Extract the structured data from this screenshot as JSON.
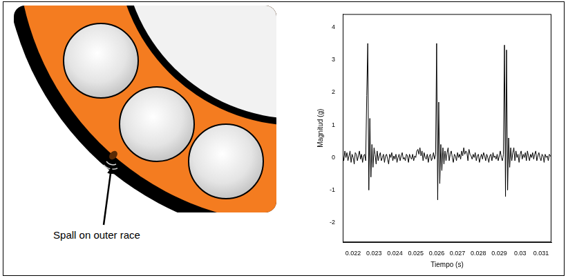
{
  "diagram": {
    "label": "Spall on outer race"
  },
  "chart_data": {
    "type": "line",
    "x_label": "Tiempo (s)",
    "y_label": "Magnitud (g)",
    "color": "#000000",
    "grid": false,
    "xlim": [
      0.0215,
      0.0315
    ],
    "xticks": [
      0.022,
      0.023,
      0.024,
      0.025,
      0.026,
      0.027,
      0.028,
      0.029,
      0.03,
      0.031
    ],
    "ylim": [
      -2.6,
      4.4
    ],
    "yticks": [
      -2,
      -1,
      0,
      1,
      2,
      3,
      4
    ],
    "x": [
      0.0215,
      0.02155,
      0.0216,
      0.02165,
      0.0217,
      0.02175,
      0.0218,
      0.02185,
      0.0219,
      0.02195,
      0.022,
      0.02205,
      0.0221,
      0.02215,
      0.0222,
      0.02225,
      0.0223,
      0.02235,
      0.0224,
      0.02245,
      0.0225,
      0.02255,
      0.0226,
      0.02265,
      0.0227,
      0.02275,
      0.0228,
      0.02285,
      0.0229,
      0.02295,
      0.023,
      0.02305,
      0.0231,
      0.02315,
      0.0232,
      0.02325,
      0.0233,
      0.02335,
      0.0234,
      0.02345,
      0.0235,
      0.02355,
      0.0236,
      0.02365,
      0.0237,
      0.02375,
      0.0238,
      0.02385,
      0.0239,
      0.02395,
      0.024,
      0.02405,
      0.0241,
      0.02415,
      0.0242,
      0.02425,
      0.0243,
      0.02435,
      0.0244,
      0.02445,
      0.0245,
      0.02455,
      0.0246,
      0.02465,
      0.0247,
      0.02475,
      0.0248,
      0.02485,
      0.0249,
      0.02495,
      0.025,
      0.02505,
      0.0251,
      0.02515,
      0.0252,
      0.02525,
      0.0253,
      0.02535,
      0.0254,
      0.02545,
      0.0255,
      0.02555,
      0.0256,
      0.02565,
      0.0257,
      0.02575,
      0.0258,
      0.02585,
      0.0259,
      0.02595,
      0.026,
      0.02605,
      0.0261,
      0.02615,
      0.0262,
      0.02625,
      0.0263,
      0.02635,
      0.0264,
      0.02645,
      0.0265,
      0.02655,
      0.0266,
      0.02665,
      0.0267,
      0.02675,
      0.0268,
      0.02685,
      0.0269,
      0.02695,
      0.027,
      0.02705,
      0.0271,
      0.02715,
      0.0272,
      0.02725,
      0.0273,
      0.02735,
      0.0274,
      0.02745,
      0.0275,
      0.02755,
      0.0276,
      0.02765,
      0.0277,
      0.02775,
      0.0278,
      0.02785,
      0.0279,
      0.02795,
      0.028,
      0.02805,
      0.0281,
      0.02815,
      0.0282,
      0.02825,
      0.0283,
      0.02835,
      0.0284,
      0.02845,
      0.0285,
      0.02855,
      0.0286,
      0.02865,
      0.0287,
      0.02875,
      0.0288,
      0.02885,
      0.0289,
      0.02895,
      0.029,
      0.02905,
      0.0291,
      0.02915,
      0.0292,
      0.02925,
      0.0293,
      0.02935,
      0.0294,
      0.02945,
      0.0295,
      0.02955,
      0.0296,
      0.02965,
      0.0297,
      0.02975,
      0.0298,
      0.02985,
      0.0299,
      0.02995,
      0.03,
      0.03005,
      0.0301,
      0.03015,
      0.0302,
      0.03025,
      0.0303,
      0.03035,
      0.0304,
      0.03045,
      0.0305,
      0.03055,
      0.0306,
      0.03065,
      0.0307,
      0.03075,
      0.0308,
      0.03085,
      0.0309,
      0.03095,
      0.031,
      0.03105,
      0.0311,
      0.03115,
      0.0312,
      0.03125,
      0.0313,
      0.03135,
      0.0314,
      0.03145,
      0.0315
    ],
    "values": [
      0.1,
      -0.1,
      0.2,
      0.0,
      0.15,
      -0.1,
      0.05,
      0.2,
      -0.15,
      0.1,
      0.0,
      -0.2,
      0.15,
      0.1,
      -0.1,
      0.05,
      0.2,
      -0.05,
      0.1,
      -0.15,
      0.05,
      0.1,
      -0.1,
      1.9,
      3.5,
      -1.0,
      1.2,
      -0.6,
      0.4,
      -0.3,
      0.3,
      0.1,
      -0.2,
      0.2,
      -0.1,
      0.05,
      0.15,
      -0.1,
      0.0,
      0.1,
      -0.15,
      0.05,
      0.1,
      -0.05,
      -0.2,
      0.1,
      0.0,
      0.15,
      -0.1,
      0.05,
      -0.05,
      0.1,
      -0.15,
      0.0,
      0.1,
      -0.1,
      0.05,
      0.15,
      -0.05,
      0.0,
      -0.1,
      0.1,
      0.05,
      -0.15,
      0.1,
      0.0,
      -0.05,
      0.1,
      -0.1,
      0.05,
      0.0,
      0.2,
      0.25,
      0.1,
      0.3,
      0.05,
      0.2,
      -0.1,
      0.15,
      0.0,
      -0.05,
      0.1,
      -0.15,
      0.05,
      0.1,
      -0.1,
      0.0,
      0.15,
      -0.05,
      0.1,
      3.5,
      -1.3,
      1.7,
      -0.8,
      0.4,
      -0.4,
      0.3,
      -0.2,
      0.2,
      -0.1,
      0.15,
      0.3,
      -0.1,
      0.1,
      0.2,
      0.0,
      -0.15,
      0.1,
      0.05,
      -0.1,
      0.15,
      0.0,
      0.1,
      -0.05,
      0.2,
      0.05,
      0.3,
      0.1,
      0.2,
      0.15,
      -0.1,
      0.25,
      0.1,
      0.05,
      -0.05,
      0.1,
      0.0,
      0.15,
      -0.1,
      0.05,
      0.1,
      -0.15,
      0.0,
      0.1,
      -0.05,
      0.15,
      0.05,
      -0.1,
      0.1,
      0.0,
      -0.15,
      0.05,
      0.1,
      -0.1,
      0.15,
      0.0,
      0.05,
      -0.05,
      0.1,
      -0.1,
      0.05,
      0.2,
      0.0,
      -0.1,
      0.1,
      3.45,
      -1.2,
      3.3,
      -1.0,
      0.6,
      -0.3,
      0.3,
      -0.1,
      0.15,
      0.3,
      -0.1,
      0.2,
      0.0,
      0.1,
      -0.15,
      0.1,
      0.2,
      -0.05,
      0.1,
      0.0,
      0.15,
      -0.1,
      0.2,
      0.05,
      -0.1,
      0.1,
      0.0,
      0.15,
      -0.05,
      0.1,
      0.2,
      -0.1,
      0.05,
      0.15,
      0.0,
      -0.1,
      0.1,
      0.05,
      -0.15,
      0.1,
      0.0,
      0.05,
      -0.1,
      0.1,
      0.05,
      0.0
    ]
  }
}
